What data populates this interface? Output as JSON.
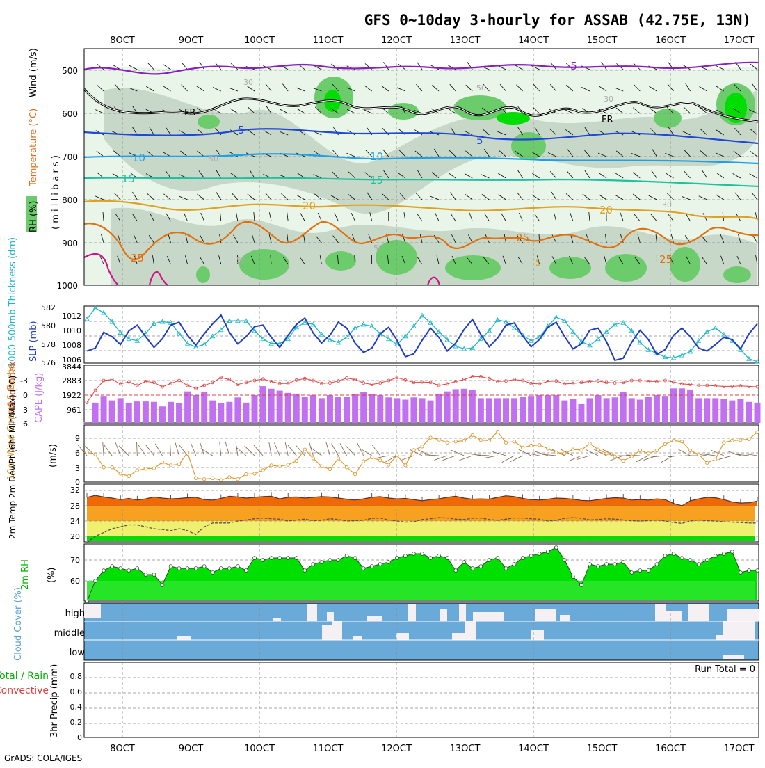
{
  "title": "GFS 0~10day 3-hourly for ASSAB (42.75E, 13N)",
  "credit": "GrADS: COLA/IGES",
  "date_labels": [
    "8OCT",
    "9OCT",
    "10OCT",
    "11OCT",
    "12OCT",
    "13OCT",
    "14OCT",
    "15OCT",
    "16OCT",
    "17OCT"
  ],
  "colors": {
    "rh_light": "#e8f5e8",
    "rh_mid": "#c8d8c8",
    "rh_dark": "#6ccc6c",
    "rh_bright": "#00dd00",
    "temp_purple": "#8a1fc0",
    "temp_blue": "#1e48d8",
    "temp_lightblue": "#1ea0e8",
    "temp_teal": "#1ec0a0",
    "temp_orange": "#e0a020",
    "temp_darkorange": "#e07010",
    "temp_magenta": "#d0108a",
    "slp": "#1e3cc8",
    "thick": "#20b8c8",
    "cape": "#c070f0",
    "li": "#e04040",
    "wind": "#e09a30",
    "barb": "#806040",
    "temp_fill": "#f06800",
    "temp_band": "#f8a020",
    "dew_band": "#f0f070",
    "rh2m": "#00e000",
    "cloud": "#6aaad8",
    "cloud_blank": "#f4f0f4"
  },
  "panel1": {
    "ylabel_wind": "Wind (m/s)",
    "ylabel_temp": "Temperature (°C)",
    "ylabel_rh": "RH (%)",
    "ylabel_units": "( m i l l i b a r s )",
    "pressure_ticks": [
      "500",
      "600",
      "700",
      "800",
      "900",
      "1000"
    ],
    "contour_labels": [
      "-5",
      "FR",
      "FR",
      "5",
      "5",
      "10",
      "10",
      "15",
      "15",
      "20",
      "20",
      "25",
      "25",
      "25",
      "30",
      "30",
      "30",
      "50",
      "50",
      "50",
      "50",
      "5"
    ]
  },
  "panel2": {
    "ylabel_thick": "1000-500mb Thickness (dm)",
    "ylabel_slp": "SLP (mb)",
    "left_ticks": [
      "582",
      "580",
      "578",
      "576"
    ],
    "right_ticks": [
      "1012",
      "1010",
      "1008",
      "1006"
    ]
  },
  "panel3": {
    "ylabel_li": "Lifted Index",
    "ylabel_cape": "CAPE (J/kg)",
    "left_ticks": [
      "-3",
      "0",
      "3",
      "6"
    ],
    "right_ticks": [
      "3844",
      "2883",
      "1922",
      "961"
    ]
  },
  "panel4": {
    "ylabel": "10m Wind Speed & Barbs",
    "units": "(m/s)",
    "ticks": [
      "9",
      "6",
      "3",
      "0"
    ]
  },
  "panel5": {
    "ylabel": "2m Temp 2m DewPt (6hr Min/Max) (°C)",
    "ticks": [
      "32",
      "28",
      "24",
      "20"
    ]
  },
  "panel6": {
    "ylabel": "2m RH",
    "units": "(%)",
    "ticks": [
      "70",
      "60"
    ]
  },
  "panel7": {
    "ylabel": "Cloud Cover (%)",
    "levels": [
      "high",
      "middle",
      "low"
    ]
  },
  "panel8": {
    "ylabel_total": "Total / Rain",
    "ylabel_conv": "Convective",
    "ylabel": "3hr Precip (mm)",
    "ticks": [
      "0.8",
      "0.6",
      "0.4",
      "0.2",
      "0"
    ],
    "run_total": "Run Total = 0"
  },
  "chart_data": {
    "type": "line",
    "x_start": "7OCT 12Z",
    "step_hours": 3,
    "slp_mb": [
      1007.4,
      1007.8,
      1010.0,
      1009.4,
      1008.3,
      1010.2,
      1011.0,
      1009.4,
      1007.9,
      1009.1,
      1011.0,
      1011.4,
      1009.6,
      1008.2,
      1009.8,
      1011.2,
      1012.4,
      1010.0,
      1008.4,
      1009.4,
      1010.8,
      1011.0,
      1009.3,
      1007.9,
      1009.6,
      1011.1,
      1012.0,
      1009.9,
      1008.5,
      1009.6,
      1011.4,
      1010.6,
      1008.5,
      1007.2,
      1007.8,
      1009.8,
      1010.7,
      1008.9,
      1006.6,
      1007.0,
      1008.9,
      1010.6,
      1009.3,
      1007.4,
      1008.5,
      1010.4,
      1011.8,
      1009.7,
      1008.0,
      1009.2,
      1011.0,
      1011.3,
      1009.5,
      1008.0,
      1009.0,
      1010.7,
      1011.4,
      1009.4,
      1007.7,
      1008.4,
      1010.3,
      1010.6,
      1008.7,
      1006.1,
      1006.4,
      1008.6,
      1010.3,
      1009.0,
      1006.9,
      1007.6,
      1009.6,
      1010.6,
      1009.4,
      1007.8,
      1007.4,
      1008.3,
      1009.3,
      1009.0,
      1007.7,
      1009.8,
      1011.2
    ],
    "thickness_dm": [
      580.8,
      582.0,
      581.5,
      580.5,
      579.3,
      578.6,
      578.4,
      579.2,
      580.3,
      580.5,
      580.4,
      579.2,
      578.1,
      577.7,
      578.0,
      578.9,
      579.6,
      580.6,
      580.6,
      580.6,
      579.5,
      578.6,
      578.1,
      578.1,
      578.6,
      579.9,
      580.4,
      580.2,
      579.1,
      578.5,
      578.2,
      578.8,
      579.8,
      580.2,
      580.0,
      579.2,
      578.6,
      578.0,
      578.9,
      580.0,
      581.2,
      580.4,
      579.4,
      578.5,
      577.8,
      577.5,
      577.6,
      578.6,
      579.5,
      580.7,
      580.5,
      579.8,
      579.0,
      578.4,
      578.8,
      580.0,
      581.0,
      580.6,
      579.4,
      578.3,
      577.9,
      578.6,
      579.4,
      580.2,
      580.4,
      579.5,
      578.2,
      577.4,
      577.0,
      576.6,
      576.5,
      576.8,
      577.2,
      578.4,
      579.4,
      579.8,
      579.1,
      578.4,
      577.4,
      576.4,
      576.1
    ],
    "cape_jkg": [
      80,
      1350,
      1800,
      1500,
      1650,
      1350,
      1430,
      1430,
      1400,
      1100,
      1400,
      1300,
      2100,
      1850,
      2050,
      1500,
      1300,
      1400,
      1700,
      1350,
      1850,
      2450,
      2280,
      2150,
      2000,
      1950,
      1750,
      1850,
      1650,
      1850,
      1750,
      1750,
      1900,
      2050,
      1900,
      1850,
      1700,
      1650,
      1550,
      1700,
      1650,
      1500,
      1950,
      2100,
      2250,
      2280,
      2200,
      1650,
      1650,
      1650,
      1650,
      1650,
      1750,
      1800,
      1850,
      1850,
      1850,
      1500,
      1600,
      1250,
      1650,
      1850,
      1650,
      1700,
      2050,
      1650,
      1550,
      1750,
      1850,
      1800,
      2300,
      2300,
      2230,
      1650,
      1650,
      1650,
      1600,
      1500,
      1600,
      1400,
      1350
    ],
    "lifted_index": [
      1.5,
      -1.0,
      -3.0,
      -3.2,
      -2.3,
      -2.7,
      -2.0,
      -2.8,
      -2.6,
      -1.7,
      -2.4,
      -3.0,
      -2.0,
      -1.4,
      -2.0,
      -2.6,
      -3.6,
      -3.2,
      -2.2,
      -2.6,
      -3.0,
      -3.3,
      -2.8,
      -2.4,
      -2.4,
      -3.1,
      -3.4,
      -3.0,
      -2.4,
      -2.5,
      -2.9,
      -3.5,
      -3.2,
      -2.5,
      -2.2,
      -2.5,
      -3.0,
      -3.6,
      -3.1,
      -2.6,
      -2.7,
      -2.6,
      -2.0,
      -2.3,
      -2.8,
      -3.2,
      -3.8,
      -3.8,
      -3.4,
      -2.8,
      -2.9,
      -3.2,
      -3.0,
      -2.4,
      -2.3,
      -2.8,
      -2.9,
      -2.3,
      -2.4,
      -2.6,
      -2.8,
      -2.9,
      -2.6,
      -2.5,
      -2.6,
      -3.0,
      -3.0,
      -2.8,
      -2.8,
      -3.0,
      -2.7,
      -2.3,
      -2.2,
      -2.0,
      -2.0,
      -1.9,
      -1.8,
      -1.8,
      -1.9,
      -1.8,
      -1.7
    ],
    "wind10m_ms": [
      6.0,
      5.6,
      3.0,
      3.0,
      1.7,
      1.2,
      2.4,
      2.7,
      2.8,
      4.0,
      3.4,
      3.6,
      6.0,
      0.8,
      0.6,
      0.8,
      0.4,
      1.0,
      0.6,
      1.6,
      1.7,
      2.4,
      3.4,
      3.2,
      3.5,
      4.3,
      6.6,
      4.8,
      3.2,
      2.6,
      4.8,
      3.0,
      1.6,
      4.2,
      5.0,
      4.4,
      3.5,
      5.4,
      3.4,
      6.5,
      7.2,
      9.0,
      8.6,
      8.0,
      8.2,
      8.4,
      9.5,
      8.5,
      8.4,
      10.2,
      8.0,
      8.2,
      7.0,
      7.4,
      7.5,
      6.8,
      6.0,
      5.8,
      6.6,
      6.5,
      7.8,
      6.6,
      5.8,
      5.2,
      4.3,
      5.2,
      6.4,
      5.8,
      6.4,
      7.7,
      8.4,
      8.2,
      6.4,
      5.6,
      3.9,
      4.6,
      8.0,
      8.4,
      8.5,
      8.7,
      10.1
    ],
    "temp2m_c": [
      30.2,
      30.7,
      30.3,
      30.0,
      29.6,
      29.9,
      29.5,
      29.8,
      30.3,
      30.0,
      29.8,
      29.9,
      30.1,
      30.2,
      29.6,
      29.5,
      29.9,
      30.5,
      30.3,
      30.0,
      30.2,
      30.4,
      30.5,
      29.8,
      30.2,
      30.3,
      30.0,
      30.2,
      30.4,
      30.3,
      30.0,
      29.7,
      29.5,
      29.8,
      30.2,
      30.4,
      30.0,
      29.8,
      29.9,
      29.6,
      29.3,
      29.6,
      29.8,
      30.2,
      30.5,
      30.0,
      29.7,
      29.8,
      29.7,
      30.2,
      30.6,
      30.4,
      29.9,
      29.6,
      29.5,
      29.7,
      30.0,
      29.9,
      29.7,
      29.4,
      29.3,
      29.6,
      29.9,
      30.1,
      30.0,
      29.5,
      29.6,
      29.5,
      29.8,
      29.6,
      28.6,
      28.0,
      29.3,
      29.8,
      30.2,
      30.1,
      29.6,
      29.0,
      28.7,
      28.8,
      29.2
    ],
    "dewpt2m_c": [
      18.4,
      20.0,
      21.0,
      22.0,
      22.5,
      23.0,
      23.0,
      22.5,
      22.0,
      21.8,
      21.5,
      22.0,
      21.5,
      20.5,
      22.5,
      23.5,
      23.5,
      23.5,
      24.0,
      24.3,
      24.6,
      24.8,
      24.6,
      24.5,
      24.0,
      24.3,
      24.5,
      24.1,
      24.2,
      24.6,
      24.4,
      24.0,
      24.1,
      24.2,
      24.7,
      24.8,
      24.3,
      24.0,
      23.7,
      23.8,
      24.4,
      24.6,
      24.9,
      24.8,
      24.5,
      24.4,
      24.7,
      24.8,
      24.4,
      24.2,
      24.5,
      24.8,
      24.8,
      24.6,
      24.5,
      24.0,
      24.2,
      24.7,
      24.9,
      24.7,
      24.3,
      24.4,
      24.6,
      24.5,
      24.3,
      24.1,
      24.0,
      24.1,
      24.3,
      24.0,
      23.6,
      23.4,
      24.0,
      24.3,
      24.1,
      24.0,
      23.8,
      23.7,
      23.6,
      23.5,
      23.5
    ],
    "rh2m_pct": [
      50,
      60,
      65,
      67,
      66,
      65,
      66,
      63,
      63,
      58,
      67,
      66,
      66,
      66,
      67,
      64,
      66,
      66,
      67,
      65,
      71,
      70,
      71,
      71,
      71,
      71,
      65,
      68,
      69,
      70,
      70,
      72,
      71,
      66,
      67,
      68,
      69,
      71,
      72,
      73,
      73,
      71,
      72,
      71,
      65,
      69,
      66,
      67,
      70,
      71,
      66,
      68,
      71,
      72,
      73,
      74,
      76,
      70,
      62,
      58,
      68,
      67,
      68,
      68,
      69,
      64,
      65,
      65,
      68,
      72,
      73,
      71,
      70,
      68,
      70,
      72,
      73,
      74,
      64,
      65,
      65
    ]
  }
}
